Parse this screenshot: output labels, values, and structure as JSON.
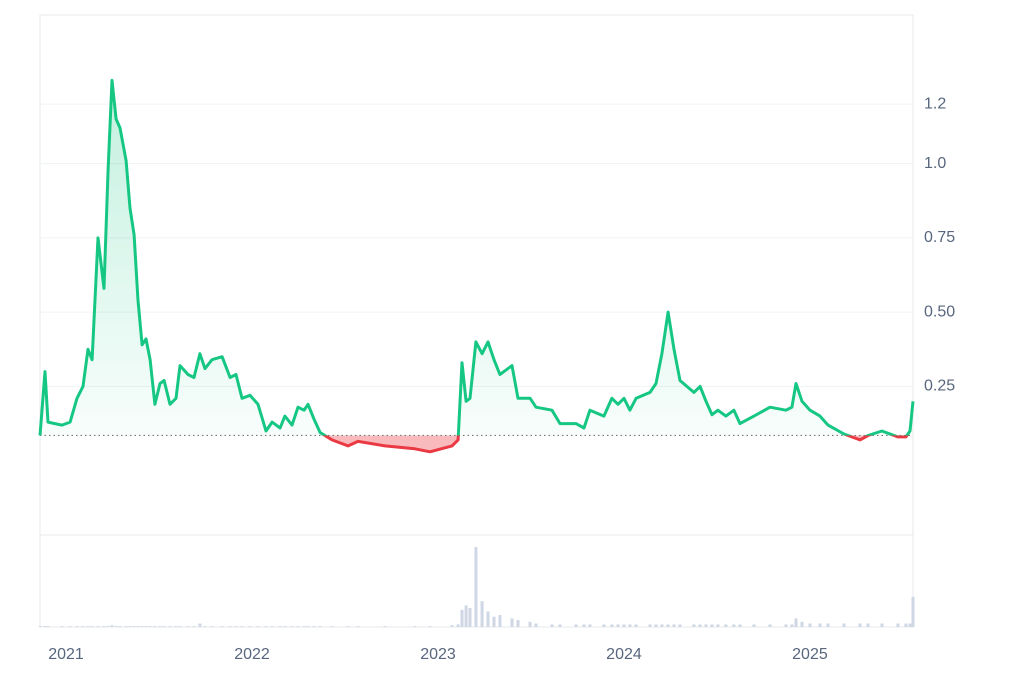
{
  "chart_data": {
    "type": "line",
    "x": [
      2020.86,
      2020.887,
      2020.903,
      2020.978,
      2021.022,
      2021.059,
      2021.091,
      2021.118,
      2021.14,
      2021.172,
      2021.204,
      2021.226,
      2021.247,
      2021.269,
      2021.29,
      2021.323,
      2021.344,
      2021.366,
      2021.387,
      2021.409,
      2021.43,
      2021.452,
      2021.478,
      2021.505,
      2021.527,
      2021.559,
      2021.591,
      2021.613,
      2021.656,
      2021.688,
      2021.72,
      2021.747,
      2021.785,
      2021.839,
      2021.882,
      2021.914,
      2021.946,
      2021.989,
      2022.032,
      2022.075,
      2022.108,
      2022.151,
      2022.177,
      2022.215,
      2022.247,
      2022.28,
      2022.301,
      2022.333,
      2022.366,
      2022.43,
      2022.516,
      2022.57,
      2022.715,
      2022.876,
      2022.957,
      2023.075,
      2023.108,
      2023.129,
      2023.151,
      2023.172,
      2023.204,
      2023.237,
      2023.269,
      2023.301,
      2023.333,
      2023.398,
      2023.43,
      2023.495,
      2023.527,
      2023.613,
      2023.656,
      2023.742,
      2023.785,
      2023.817,
      2023.892,
      2023.935,
      2023.968,
      2024.0,
      2024.032,
      2024.065,
      2024.14,
      2024.172,
      2024.204,
      2024.237,
      2024.269,
      2024.301,
      2024.376,
      2024.409,
      2024.441,
      2024.473,
      2024.505,
      2024.548,
      2024.591,
      2024.624,
      2024.699,
      2024.785,
      2024.871,
      2024.903,
      2024.925,
      2024.957,
      2025.0,
      2025.054,
      2025.097,
      2025.183,
      2025.269,
      2025.312,
      2025.387,
      2025.473,
      2025.516,
      2025.538,
      2025.554
    ],
    "values": [
      0.085,
      0.3,
      0.13,
      0.12,
      0.13,
      0.21,
      0.25,
      0.375,
      0.34,
      0.75,
      0.58,
      0.98,
      1.28,
      1.15,
      1.12,
      1.01,
      0.85,
      0.76,
      0.54,
      0.39,
      0.41,
      0.34,
      0.19,
      0.26,
      0.27,
      0.19,
      0.21,
      0.32,
      0.29,
      0.28,
      0.36,
      0.31,
      0.34,
      0.35,
      0.28,
      0.29,
      0.21,
      0.22,
      0.19,
      0.1,
      0.13,
      0.11,
      0.15,
      0.12,
      0.18,
      0.17,
      0.19,
      0.14,
      0.095,
      0.07,
      0.05,
      0.065,
      0.05,
      0.04,
      0.03,
      0.05,
      0.07,
      0.33,
      0.2,
      0.21,
      0.4,
      0.36,
      0.4,
      0.34,
      0.29,
      0.32,
      0.21,
      0.21,
      0.18,
      0.17,
      0.125,
      0.125,
      0.11,
      0.17,
      0.15,
      0.21,
      0.19,
      0.21,
      0.17,
      0.21,
      0.23,
      0.26,
      0.36,
      0.5,
      0.375,
      0.27,
      0.23,
      0.25,
      0.2,
      0.155,
      0.17,
      0.15,
      0.17,
      0.125,
      0.15,
      0.18,
      0.17,
      0.18,
      0.26,
      0.2,
      0.17,
      0.15,
      0.12,
      0.09,
      0.07,
      0.085,
      0.1,
      0.08,
      0.08,
      0.1,
      0.2
    ],
    "volume": [
      1,
      1,
      1,
      1,
      1,
      1,
      1,
      1,
      1,
      1,
      1,
      1,
      2,
      1,
      1,
      1,
      1,
      1,
      1,
      1,
      1,
      1,
      1,
      1,
      1,
      1,
      1,
      1,
      1,
      1,
      4,
      1,
      1,
      1,
      1,
      1,
      1,
      1,
      1,
      1,
      1,
      1,
      1,
      1,
      1,
      1,
      1,
      1,
      1,
      1,
      1,
      1,
      1,
      1,
      1,
      2,
      3,
      20,
      25,
      22,
      93,
      30,
      18,
      12,
      14,
      10,
      8,
      6,
      4,
      3,
      3,
      3,
      3,
      3,
      3,
      3,
      3,
      3,
      3,
      3,
      3,
      3,
      3,
      3,
      3,
      3,
      3,
      3,
      3,
      3,
      3,
      3,
      3,
      3,
      3,
      3,
      3,
      3,
      10,
      6,
      4,
      4,
      4,
      4,
      4,
      4,
      4,
      4,
      4,
      4,
      35
    ],
    "baseline": 0.085,
    "color": "#16c784",
    "negative_color": "#ea3943",
    "volume_color": "#cfd6e4",
    "xlim": [
      2020.86,
      2025.554
    ],
    "xticks": [
      2021,
      2022,
      2023,
      2024,
      2025
    ],
    "ylim": [
      -0.25,
      1.5
    ],
    "yticks": [
      0.25,
      {
        "value": 0.5,
        "label": "0.50"
      },
      0.75,
      {
        "value": 1,
        "label": "1.0"
      },
      1.2
    ],
    "vlim": [
      0,
      100
    ],
    "grid": true
  }
}
